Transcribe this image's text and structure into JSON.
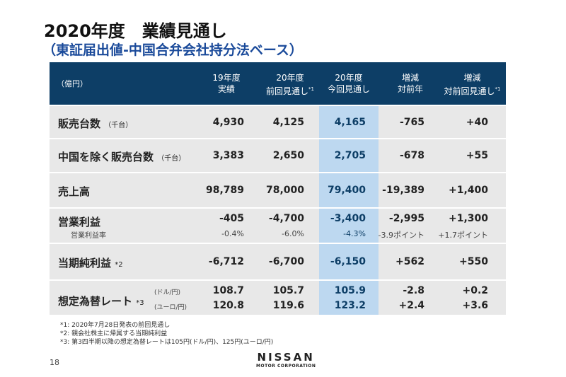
{
  "title": "2020年度　業績見通し",
  "subtitle": "（東証届出値-中国合弁会社持分法ベース）",
  "table": {
    "unit": "（億円）",
    "headers": [
      {
        "l1": "19年度",
        "l2": "実績"
      },
      {
        "l1": "20年度",
        "l2": "前回見通し",
        "sup": "*1"
      },
      {
        "l1": "20年度",
        "l2": "今回見通し"
      },
      {
        "l1": "増減",
        "l2": "対前年"
      },
      {
        "l1": "増減",
        "l2": "対前回見通し",
        "sup": "*1"
      }
    ],
    "rows": [
      {
        "label": "販売台数",
        "note": "（千台）",
        "values": [
          "4,930",
          "4,125",
          "4,165",
          "-765",
          "+40"
        ]
      },
      {
        "label": "中国を除く販売台数",
        "note": "（千台）",
        "values": [
          "3,383",
          "2,650",
          "2,705",
          "-678",
          "+55"
        ]
      },
      {
        "label": "売上高",
        "values": [
          "98,789",
          "78,000",
          "79,400",
          "-19,389",
          "+1,400"
        ]
      },
      {
        "label": "営業利益",
        "values": [
          "-405",
          "-4,700",
          "-3,400",
          "-2,995",
          "+1,300"
        ],
        "sublabel": "営業利益率",
        "subvalues": [
          "-0.4%",
          "-6.0%",
          "-4.3%",
          "-3.9ポイント",
          "+1.7ポイント"
        ]
      },
      {
        "label": "当期純利益",
        "note": "*2",
        "values": [
          "-6,712",
          "-6,700",
          "-6,150",
          "+562",
          "+550"
        ]
      },
      {
        "label": "想定為替レート",
        "note": "*3",
        "curr1": "(ドル/円)",
        "curr2": "(ユーロ/円)",
        "values": [
          "108.7",
          "105.7",
          "105.9",
          "-2.8",
          "+0.2"
        ],
        "values2": [
          "120.8",
          "119.6",
          "123.2",
          "+2.4",
          "+3.6"
        ]
      }
    ]
  },
  "footnotes": [
    "*1: 2020年7月28日発表の前回見通し",
    "*2: 親会社株主に帰属する当期純利益",
    "*3: 第3四半期以降の想定為替レートは105円(ドル/円)、125円(ユーロ/円)"
  ],
  "page_number": "18",
  "logo": {
    "name": "NISSAN",
    "sub": "MOTOR CORPORATION"
  },
  "colors": {
    "header": "#0d3e66",
    "highlight": "#bdd8f0",
    "row": "#e8e8e8"
  }
}
